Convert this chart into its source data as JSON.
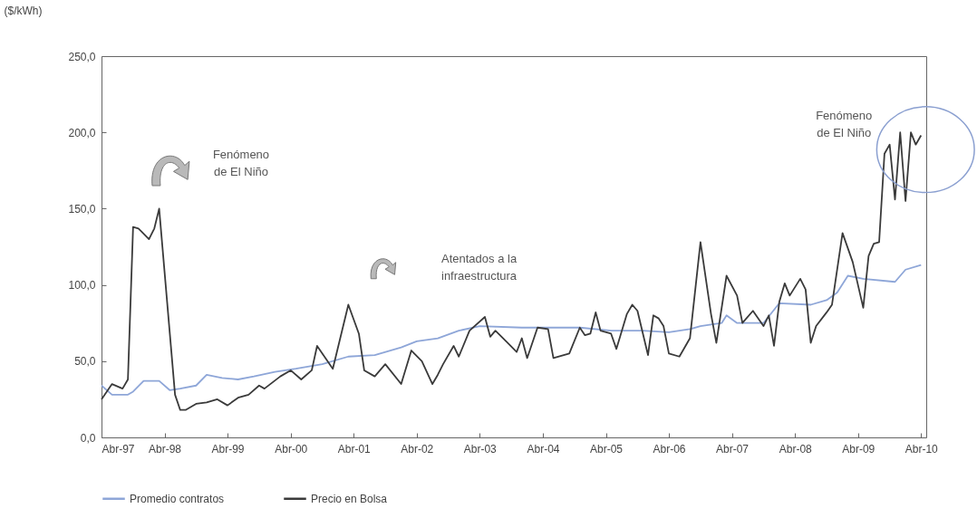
{
  "chart_data": {
    "type": "line",
    "ylabel": "($/kWh)",
    "xlim": [
      "1997-04",
      "2010-05"
    ],
    "xticks": [
      {
        "value": "1997-04",
        "label": "Abr-97"
      },
      {
        "value": "1998-04",
        "label": "Abr-98"
      },
      {
        "value": "1999-04",
        "label": "Abr-99"
      },
      {
        "value": "2000-04",
        "label": "Abr-00"
      },
      {
        "value": "2001-04",
        "label": "Abr-01"
      },
      {
        "value": "2002-04",
        "label": "Abr-02"
      },
      {
        "value": "2003-04",
        "label": "Abr-03"
      },
      {
        "value": "2004-04",
        "label": "Abr-04"
      },
      {
        "value": "2005-04",
        "label": "Abr-05"
      },
      {
        "value": "2006-04",
        "label": "Abr-06"
      },
      {
        "value": "2007-04",
        "label": "Abr-07"
      },
      {
        "value": "2008-04",
        "label": "Abr-08"
      },
      {
        "value": "2009-04",
        "label": "Abr-09"
      },
      {
        "value": "2010-04",
        "label": "Abr-10"
      }
    ],
    "ylim": [
      0,
      250
    ],
    "yticks": [
      {
        "value": 0,
        "label": "0,0"
      },
      {
        "value": 50,
        "label": "50,0"
      },
      {
        "value": 100,
        "label": "100,0"
      },
      {
        "value": 150,
        "label": "150,0"
      },
      {
        "value": 200,
        "label": "200,0"
      },
      {
        "value": 250,
        "label": "250,0"
      }
    ],
    "grid": false,
    "legend": "bottom",
    "marker": "none",
    "line_style": "solid",
    "series": [
      {
        "name": "Promedio contratos",
        "color": "#8ea6d8",
        "x": [
          "1997-04",
          "1997-06",
          "1997-09",
          "1997-10",
          "1997-12",
          "1998-03",
          "1998-05",
          "1998-07",
          "1998-10",
          "1998-12",
          "1999-03",
          "1999-06",
          "1999-09",
          "2000-01",
          "2000-05",
          "2000-10",
          "2001-03",
          "2001-08",
          "2002-01",
          "2002-04",
          "2002-08",
          "2002-12",
          "2003-04",
          "2003-12",
          "2004-06",
          "2004-11",
          "2005-05",
          "2005-11",
          "2006-04",
          "2006-08",
          "2006-10",
          "2007-02",
          "2007-03",
          "2007-05",
          "2007-10",
          "2008-01",
          "2008-07",
          "2008-10",
          "2008-12",
          "2009-02",
          "2009-05",
          "2009-11",
          "2010-01",
          "2010-04"
        ],
        "values": [
          34,
          28,
          28,
          30,
          37,
          37,
          31,
          32,
          34,
          41,
          39,
          38,
          40,
          43,
          45,
          48,
          53,
          54,
          59,
          63,
          65,
          70,
          73,
          72,
          72,
          72,
          70,
          70,
          69,
          71,
          73,
          75,
          80,
          75,
          75,
          88,
          87,
          90,
          95,
          106,
          104,
          102,
          110,
          113
        ]
      },
      {
        "name": "Precio en Bolsa",
        "color": "#3a3a3a",
        "x": [
          "1997-04",
          "1997-06",
          "1997-08",
          "1997-09",
          "1997-10",
          "1997-11",
          "1998-01",
          "1998-02",
          "1998-03",
          "1998-06",
          "1998-07",
          "1998-08",
          "1998-10",
          "1998-12",
          "1999-02",
          "1999-04",
          "1999-06",
          "1999-08",
          "1999-10",
          "1999-11",
          "2000-02",
          "2000-04",
          "2000-06",
          "2000-08",
          "2000-09",
          "2000-12",
          "2001-03",
          "2001-05",
          "2001-06",
          "2001-08",
          "2001-10",
          "2002-01",
          "2002-03",
          "2002-05",
          "2002-07",
          "2002-08",
          "2002-09",
          "2002-11",
          "2002-12",
          "2003-02",
          "2003-05",
          "2003-06",
          "2003-07",
          "2003-09",
          "2003-11",
          "2003-12",
          "2004-01",
          "2004-03",
          "2004-05",
          "2004-06",
          "2004-09",
          "2004-11",
          "2004-12",
          "2005-01",
          "2005-02",
          "2005-03",
          "2005-05",
          "2005-06",
          "2005-08",
          "2005-09",
          "2005-10",
          "2005-12",
          "2006-01",
          "2006-02",
          "2006-03",
          "2006-04",
          "2006-06",
          "2006-08",
          "2006-10",
          "2006-12",
          "2007-01",
          "2007-03",
          "2007-05",
          "2007-06",
          "2007-08",
          "2007-10",
          "2007-11",
          "2007-12",
          "2008-01",
          "2008-02",
          "2008-03",
          "2008-05",
          "2008-06",
          "2008-07",
          "2008-08",
          "2008-10",
          "2008-11",
          "2009-01",
          "2009-03",
          "2009-05",
          "2009-06",
          "2009-07",
          "2009-08",
          "2009-09",
          "2009-10",
          "2009-11",
          "2009-12",
          "2010-01",
          "2010-02",
          "2010-03",
          "2010-04"
        ],
        "values": [
          25,
          35,
          32,
          38,
          138,
          137,
          130,
          137,
          150,
          28,
          18,
          18,
          22,
          23,
          25,
          21,
          26,
          28,
          34,
          32,
          40,
          44,
          38,
          44,
          60,
          45,
          87,
          68,
          44,
          40,
          48,
          35,
          57,
          50,
          35,
          41,
          48,
          60,
          53,
          70,
          79,
          66,
          70,
          63,
          56,
          65,
          52,
          72,
          71,
          52,
          55,
          72,
          67,
          68,
          82,
          70,
          68,
          58,
          81,
          87,
          83,
          54,
          80,
          78,
          73,
          55,
          53,
          65,
          128,
          81,
          62,
          106,
          93,
          75,
          83,
          73,
          80,
          60,
          89,
          101,
          93,
          104,
          97,
          62,
          73,
          82,
          87,
          134,
          115,
          85,
          119,
          127,
          128,
          186,
          192,
          156,
          200,
          155,
          200,
          192,
          198
        ]
      }
    ],
    "annotations": [
      "Fenómeno\nde El Niño",
      "Atentados a la\ninfraestructura",
      {
        "text": "Fenómeno\nde El Niño",
        "x": "2009-12",
        "y": 200
      }
    ]
  }
}
